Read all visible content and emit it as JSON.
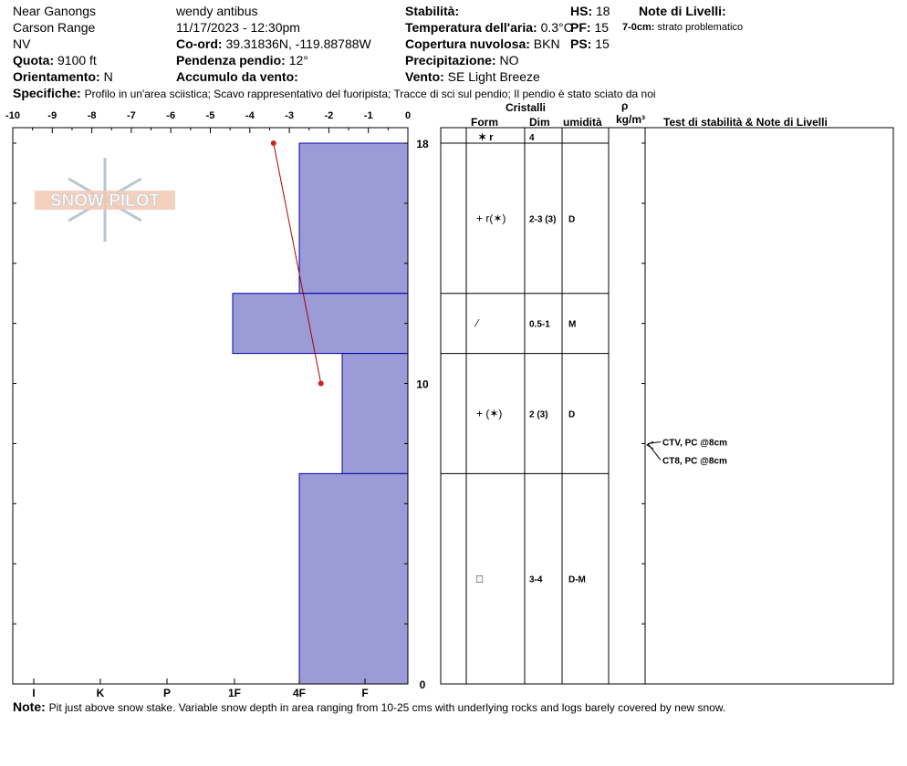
{
  "header": {
    "location": "Near Ganongs",
    "range": "Carson Range",
    "state": "NV",
    "elevation_label": "Quota:",
    "elevation_value": "9100 ft",
    "aspect_label": "Orientamento:",
    "aspect_value": "N",
    "observer": "wendy antibus",
    "datetime": "11/17/2023 - 12:30pm",
    "coord_label": "Co-ord:",
    "coord_value": "39.31836N, -119.88788W",
    "slope_label": "Pendenza pendio:",
    "slope_value": "12°",
    "wind_loading_label": "Accumulo da vento:",
    "wind_loading_value": "",
    "stability_label": "Stabilità:",
    "stability_value": "",
    "air_temp_label": "Temperatura dell'aria:",
    "air_temp_value": "0.3°C",
    "sky_label": "Copertura nuvolosa:",
    "sky_value": "BKN",
    "precip_label": "Precipitazione:",
    "precip_value": "NO",
    "wind_label": "Vento:",
    "wind_value": "SE  Light Breeze",
    "hs_label": "HS:",
    "hs_value": "18",
    "pf_label": "PF:",
    "pf_value": "15",
    "ps_label": "PS:",
    "ps_value": "15",
    "layer_notes_label": "Note di Livelli:",
    "layer_note_range": "7-0cm:",
    "layer_note_text": "strato problematico",
    "specifics_label": "Specifiche:",
    "specifics_text": "Profilo in un'area sciistica; Scavo rappresentativo del fuoripista; Tracce di sci sul pendio; Il pendio è stato sciato da noi"
  },
  "note": {
    "label": "Note:",
    "text": "Pit just above snow stake.  Variable snow depth in area ranging from 10-25 cms with underlying rocks and logs barely covered by new snow."
  },
  "logo_text": "SNOW PILOT",
  "columns": {
    "crystals": "Cristalli",
    "form": "Form",
    "size": "Dim",
    "moisture": "umidità",
    "rho": "ρ",
    "density_unit": "kg/m³",
    "stability_notes": "Test di stabilità & Note di Livelli"
  },
  "colors": {
    "layer_fill": "#9b9bd7",
    "layer_stroke": "#0000aa",
    "temp_line": "#aa0000",
    "temp_point": "#cc2222",
    "grid": "#000000"
  },
  "chart_data": {
    "type": "bar",
    "title": "",
    "temperature_axis": {
      "ticks": [
        "-10",
        "-9",
        "-8",
        "-7",
        "-6",
        "-5",
        "-4",
        "-3",
        "-2",
        "-1",
        "0"
      ],
      "range": [
        -10,
        0
      ]
    },
    "hardness_axis": {
      "ticks": [
        "I",
        "K",
        "P",
        "1F",
        "4F",
        "F"
      ]
    },
    "height_axis": {
      "ticks": [
        "18",
        "10",
        "0"
      ],
      "range": [
        0,
        18
      ],
      "unit": "cm"
    },
    "layers": [
      {
        "top": 18,
        "bottom": 13,
        "hardness": "4F",
        "form": "✶ r",
        "form_text": "+ r(✶)",
        "size": "2-3 (3)",
        "moisture": "D"
      },
      {
        "top": 13,
        "bottom": 11,
        "hardness": "1F+",
        "form": "/",
        "form_text": "⁄",
        "size": "0.5-1",
        "moisture": "M"
      },
      {
        "top": 11,
        "bottom": 7,
        "hardness": "F+",
        "form": "+ (✶)",
        "form_text": "+ (✶)",
        "size": "2 (3)",
        "moisture": "D"
      },
      {
        "top": 7,
        "bottom": 0,
        "hardness": "4F",
        "form": "□",
        "form_text": "□",
        "size": "3-4",
        "moisture": "D-M"
      }
    ],
    "surface_row": {
      "form": "✶ r",
      "size": "4"
    },
    "temperature_profile": [
      {
        "height": 18,
        "temp": -3.4
      },
      {
        "height": 10,
        "temp": -2.2
      }
    ],
    "stability_tests": [
      {
        "label": "CTV, PC @8cm",
        "height": 8
      },
      {
        "label": "CT8, PC @8cm",
        "height": 8
      }
    ]
  }
}
